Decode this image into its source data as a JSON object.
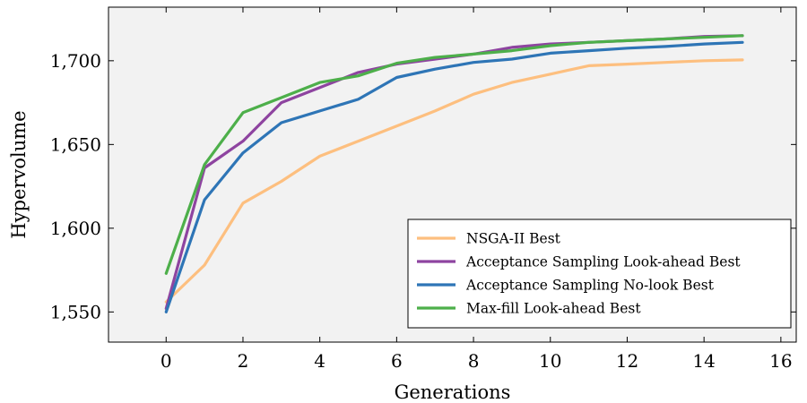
{
  "chart_data": {
    "type": "line",
    "xlabel": "Generations",
    "ylabel": "Hypervolume",
    "xlim": [
      -1.5,
      16.4
    ],
    "ylim": [
      1532,
      1732
    ],
    "xticks": [
      0,
      2,
      4,
      6,
      8,
      10,
      12,
      14,
      16
    ],
    "xtick_labels": [
      "0",
      "2",
      "4",
      "6",
      "8",
      "10",
      "12",
      "14",
      "16"
    ],
    "yticks": [
      1550,
      1600,
      1650,
      1700
    ],
    "ytick_labels": [
      "1,550",
      "1,600",
      "1,650",
      "1,700"
    ],
    "grid": false,
    "legend_position": "bottom-right",
    "x": [
      0,
      1,
      2,
      3,
      4,
      5,
      6,
      7,
      8,
      9,
      10,
      11,
      12,
      13,
      14,
      15
    ],
    "series": [
      {
        "name": "NSGA-II Best",
        "color": "#fdbf7f",
        "values": [
          1556,
          1578,
          1615,
          1628,
          1643,
          1652,
          1661,
          1670,
          1680,
          1687,
          1692,
          1697,
          1698,
          1699,
          1700,
          1700.5
        ]
      },
      {
        "name": "Acceptance Sampling Look-ahead Best",
        "color": "#8e44a0",
        "values": [
          1552,
          1636,
          1652,
          1675,
          1684,
          1693,
          1698,
          1701,
          1704,
          1708,
          1710,
          1711,
          1712,
          1713,
          1714.5,
          1715
        ]
      },
      {
        "name": "Acceptance Sampling No-look Best",
        "color": "#2e75b6",
        "values": [
          1550,
          1617,
          1645,
          1663,
          1670,
          1677,
          1690,
          1695,
          1699,
          1701,
          1704.5,
          1706,
          1707.5,
          1708.5,
          1710,
          1711
        ]
      },
      {
        "name": "Max-fill Look-ahead Best",
        "color": "#4daf4a",
        "values": [
          1573,
          1638,
          1669,
          1678,
          1687,
          1691,
          1698.5,
          1702,
          1704,
          1706,
          1709,
          1711,
          1712,
          1713,
          1714,
          1715
        ]
      }
    ]
  }
}
